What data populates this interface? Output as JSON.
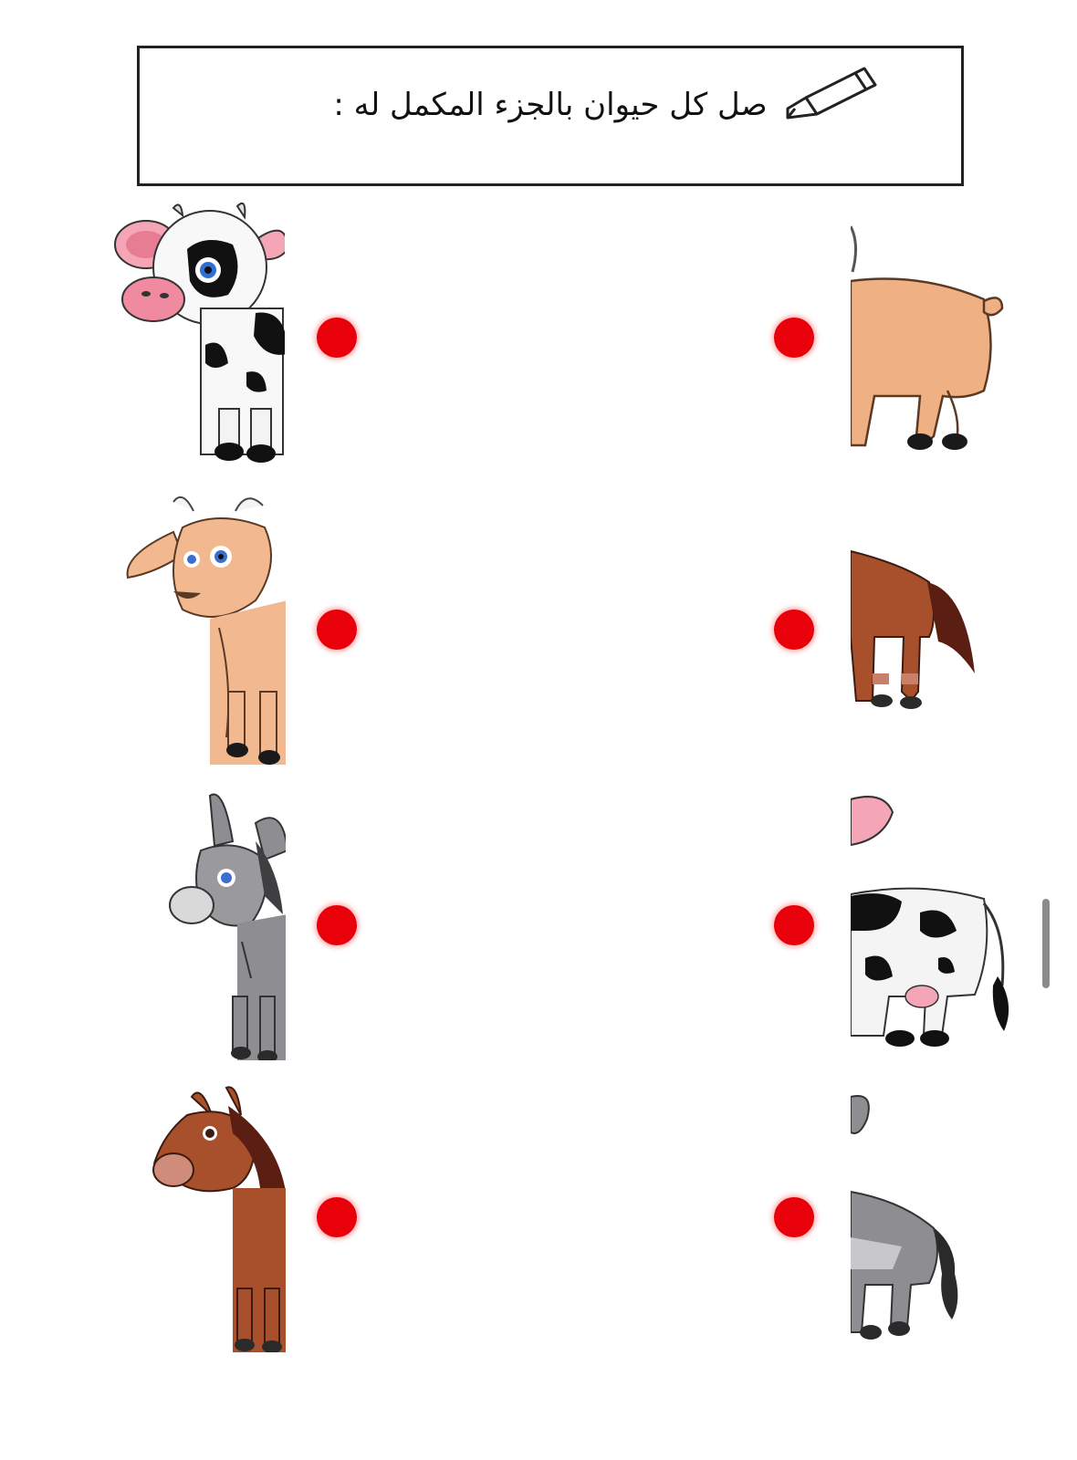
{
  "header": {
    "instruction": "صل كل حيوان بالجزء المكمل له :"
  },
  "icons": {
    "pencil": "pencil-icon"
  },
  "colors": {
    "dot": "#e8000b",
    "cow_black": "#111111",
    "goat_tan": "#efb184",
    "horse_brown": "#a8502b",
    "donkey_grey": "#8e8e92"
  },
  "pairs": [
    {
      "left": "cow-head",
      "right": "goat-rear"
    },
    {
      "left": "goat-head",
      "right": "horse-rear"
    },
    {
      "left": "donkey-head",
      "right": "cow-rear"
    },
    {
      "left": "horse-head",
      "right": "donkey-rear"
    }
  ]
}
